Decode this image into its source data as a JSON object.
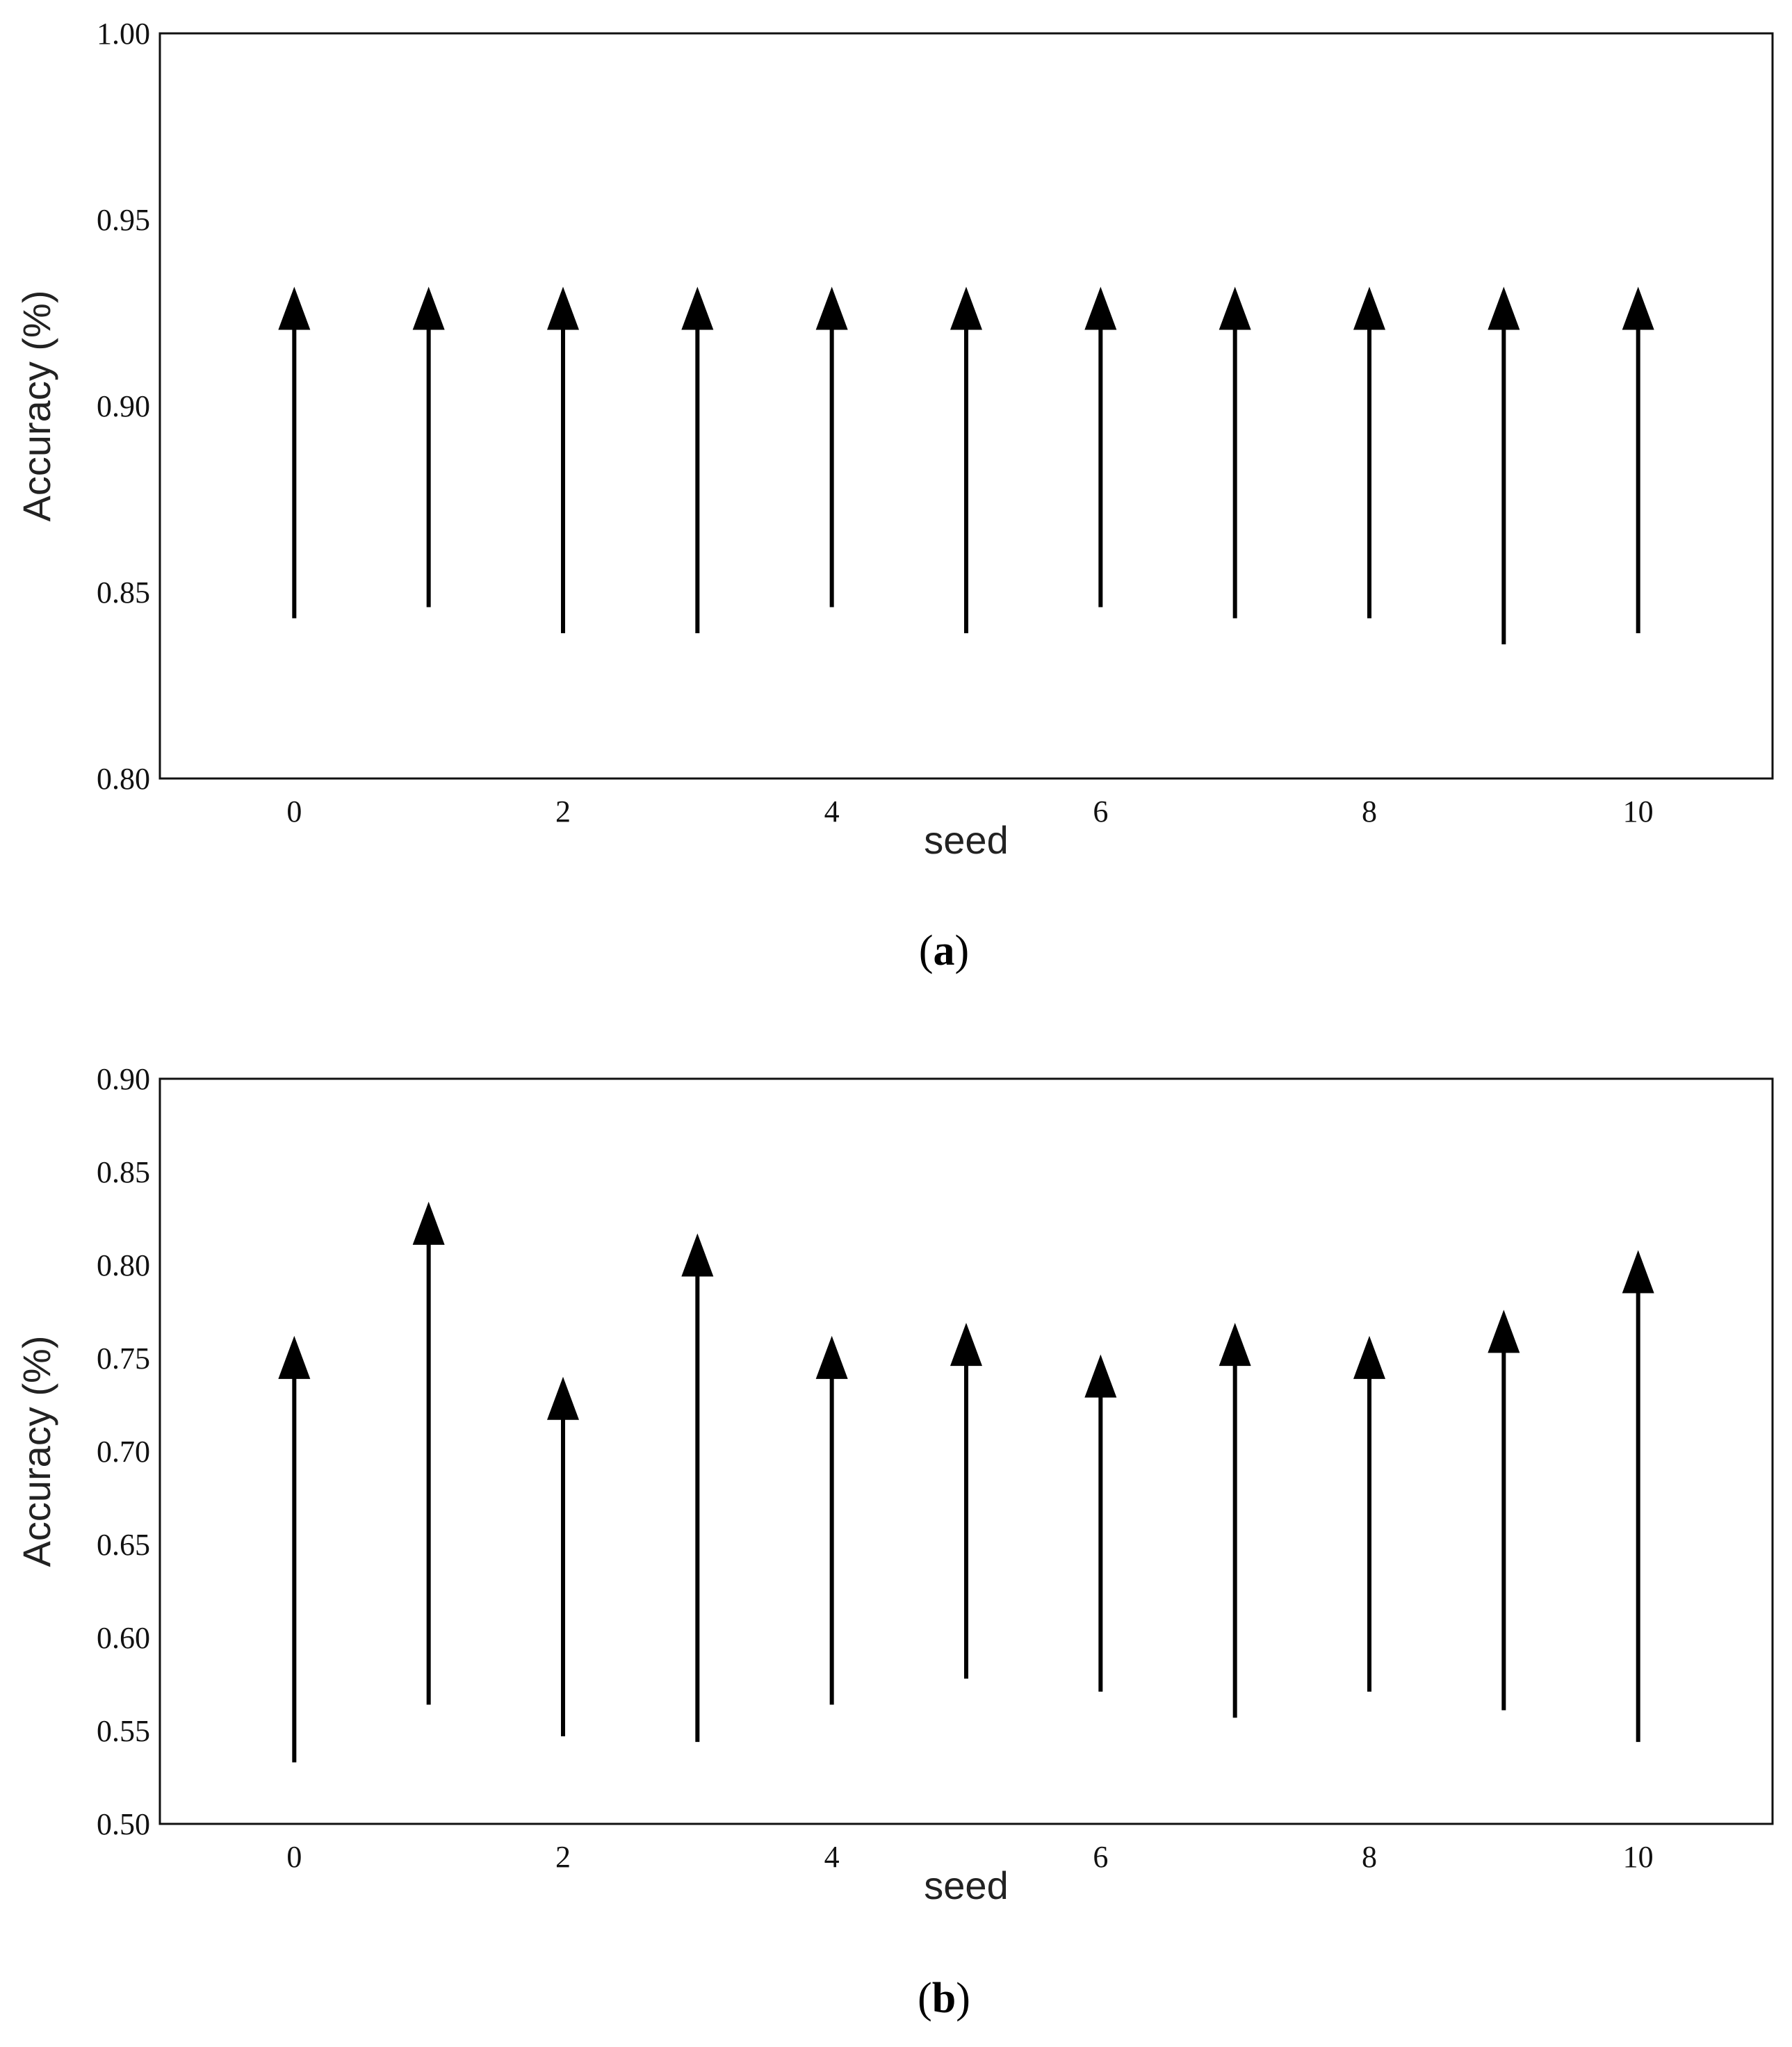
{
  "chart_data": [
    {
      "type": "arrow",
      "panel_label": "a",
      "xlabel": "seed",
      "ylabel": "Accuracy (%)",
      "xlim": [
        -1,
        11
      ],
      "ylim": [
        0.8,
        1.0
      ],
      "xticks": [
        "0",
        "2",
        "4",
        "6",
        "8",
        "10"
      ],
      "xtick_values": [
        0,
        2,
        4,
        6,
        8,
        10
      ],
      "yticks": [
        "0.80",
        "0.85",
        "0.90",
        "0.95",
        "1.00"
      ],
      "ytick_values": [
        0.8,
        0.85,
        0.9,
        0.95,
        1.0
      ],
      "grid": false,
      "arrows": [
        {
          "seed": 0,
          "start": 0.843,
          "end": 0.932
        },
        {
          "seed": 1,
          "start": 0.846,
          "end": 0.932
        },
        {
          "seed": 2,
          "start": 0.839,
          "end": 0.932
        },
        {
          "seed": 3,
          "start": 0.839,
          "end": 0.932
        },
        {
          "seed": 4,
          "start": 0.846,
          "end": 0.932
        },
        {
          "seed": 5,
          "start": 0.839,
          "end": 0.932
        },
        {
          "seed": 6,
          "start": 0.846,
          "end": 0.932
        },
        {
          "seed": 7,
          "start": 0.843,
          "end": 0.932
        },
        {
          "seed": 8,
          "start": 0.843,
          "end": 0.932
        },
        {
          "seed": 9,
          "start": 0.836,
          "end": 0.932
        },
        {
          "seed": 10,
          "start": 0.839,
          "end": 0.932
        }
      ]
    },
    {
      "type": "arrow",
      "panel_label": "b",
      "xlabel": "seed",
      "ylabel": "Accuracy (%)",
      "xlim": [
        -1,
        11
      ],
      "ylim": [
        0.5,
        0.9
      ],
      "xticks": [
        "0",
        "2",
        "4",
        "6",
        "8",
        "10"
      ],
      "xtick_values": [
        0,
        2,
        4,
        6,
        8,
        10
      ],
      "yticks": [
        "0.50",
        "0.55",
        "0.60",
        "0.65",
        "0.70",
        "0.75",
        "0.80",
        "0.85",
        "0.90"
      ],
      "ytick_values": [
        0.5,
        0.55,
        0.6,
        0.65,
        0.7,
        0.75,
        0.8,
        0.85,
        0.9
      ],
      "grid": false,
      "arrows": [
        {
          "seed": 0,
          "start": 0.533,
          "end": 0.762
        },
        {
          "seed": 1,
          "start": 0.564,
          "end": 0.834
        },
        {
          "seed": 2,
          "start": 0.547,
          "end": 0.74
        },
        {
          "seed": 3,
          "start": 0.544,
          "end": 0.817
        },
        {
          "seed": 4,
          "start": 0.564,
          "end": 0.762
        },
        {
          "seed": 5,
          "start": 0.578,
          "end": 0.769
        },
        {
          "seed": 6,
          "start": 0.571,
          "end": 0.752
        },
        {
          "seed": 7,
          "start": 0.557,
          "end": 0.769
        },
        {
          "seed": 8,
          "start": 0.571,
          "end": 0.762
        },
        {
          "seed": 9,
          "start": 0.561,
          "end": 0.776
        },
        {
          "seed": 10,
          "start": 0.544,
          "end": 0.808
        }
      ]
    }
  ]
}
